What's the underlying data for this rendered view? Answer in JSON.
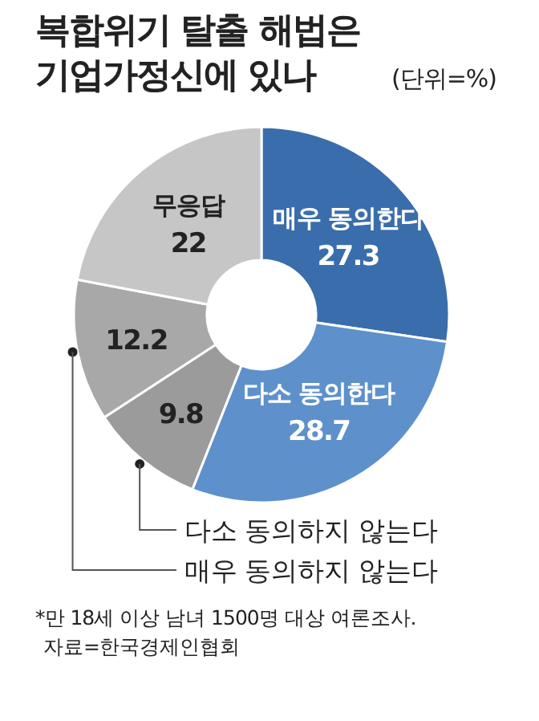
{
  "chart_data": {
    "type": "donut",
    "title": "복합위기 탈출 해법은 기업가정신에 있나",
    "subtitle": "(단위=%)",
    "categories": [
      "매우 동의한다",
      "다소 동의한다",
      "다소 동의하지 않는다",
      "매우 동의하지 않는다",
      "무응답"
    ],
    "values": [
      27.3,
      28.7,
      9.8,
      12.2,
      22
    ],
    "colors": [
      "#3a6dab",
      "#5e91cb",
      "#9b9b9b",
      "#a8a8a8",
      "#c6c6c6"
    ],
    "data_labels": true,
    "annotations": [
      "*만 18세 이상 남녀 1500명 대상 여론조사.",
      "자료=한국경제인협회"
    ]
  }
}
